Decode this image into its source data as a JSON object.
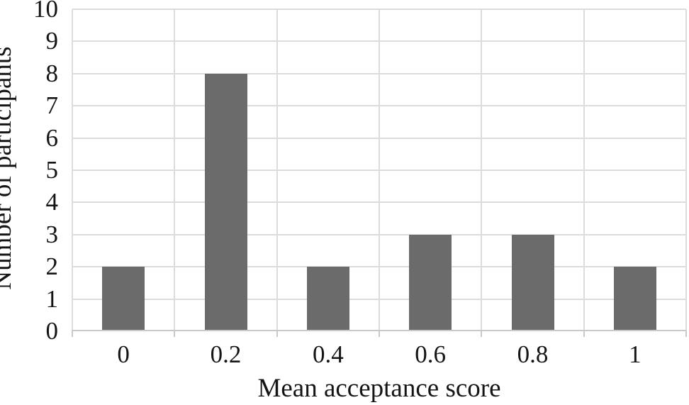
{
  "chart_data": {
    "type": "bar",
    "title": "",
    "categories": [
      "0",
      "0.2",
      "0.4",
      "0.6",
      "0.8",
      "1"
    ],
    "values": [
      2,
      8,
      2,
      3,
      3,
      2
    ],
    "xlabel": "Mean acceptance score",
    "ylabel": "Number of participants",
    "ylim": [
      0,
      10
    ],
    "yticks": [
      0,
      1,
      2,
      3,
      4,
      5,
      6,
      7,
      8,
      9,
      10
    ],
    "grid": "horizontal and vertical gridlines on, category-boundary ticks below axis",
    "legend": "none",
    "colors": {
      "bar": "#6b6b6b",
      "gridline": "#dcdcdc",
      "axis": "#c9c9c9",
      "text": "#151515",
      "background": "#ffffff"
    }
  }
}
